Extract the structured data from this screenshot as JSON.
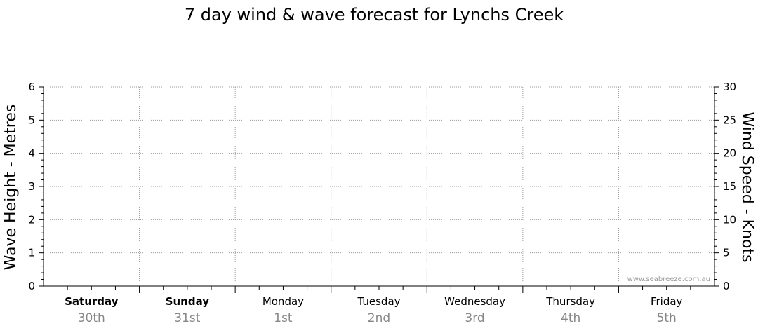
{
  "colors": {
    "grid": "#9a9a9a",
    "axis": "#000000",
    "date_text": "#888888",
    "watermark": "#9a9a9a"
  },
  "chart_data": {
    "type": "line",
    "title": "7 day wind & wave forecast for Lynchs Creek",
    "ylabel_left": "Wave Height - Metres",
    "ylabel_right": "Wind Speed - Knots",
    "ylim_left": [
      0,
      6
    ],
    "ylim_right": [
      0,
      30
    ],
    "left_ticks": [
      "0",
      "1",
      "2",
      "3",
      "4",
      "5",
      "6"
    ],
    "right_ticks": [
      "0",
      "5",
      "10",
      "15",
      "20",
      "25",
      "30"
    ],
    "days": [
      {
        "day": "Saturday",
        "date": "30th",
        "bold": true
      },
      {
        "day": "Sunday",
        "date": "31st",
        "bold": true
      },
      {
        "day": "Monday",
        "date": "1st",
        "bold": false
      },
      {
        "day": "Tuesday",
        "date": "2nd",
        "bold": false
      },
      {
        "day": "Wednesday",
        "date": "3rd",
        "bold": false
      },
      {
        "day": "Thursday",
        "date": "4th",
        "bold": false
      },
      {
        "day": "Friday",
        "date": "5th",
        "bold": false
      }
    ],
    "grid": true,
    "series": []
  },
  "watermark": "www.seabreeze.com.au"
}
